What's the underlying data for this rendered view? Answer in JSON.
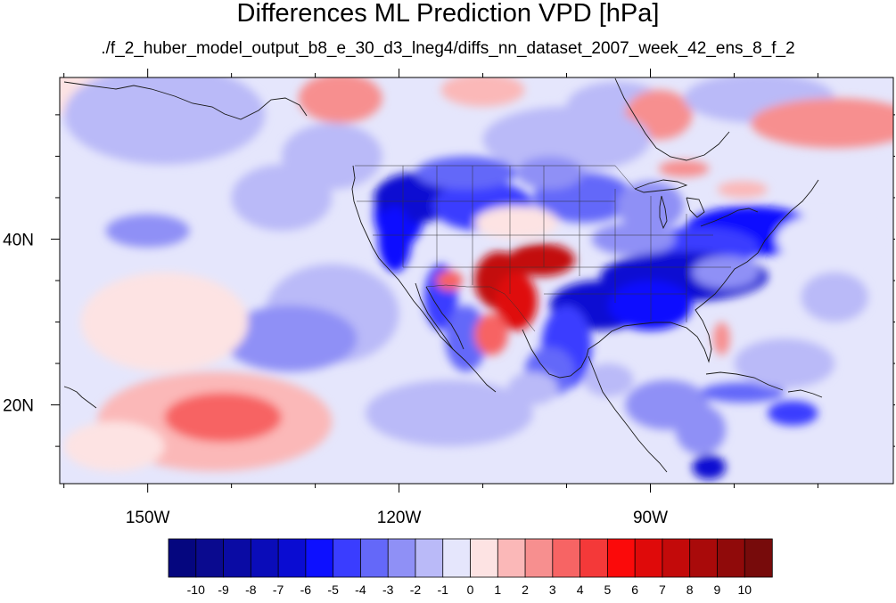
{
  "title": "Differences ML Prediction VPD [hPa]",
  "subtitle": "./f_2_huber_model_output_b8_e_30_d3_lneg4/diffs_nn_dataset_2007_week_42_ens_8_f_2",
  "map": {
    "lon_range": [
      -160.5,
      -61
    ],
    "lat_range": [
      10.5,
      59.5
    ],
    "lon_ticks": [
      {
        "value": -150,
        "label": "150W"
      },
      {
        "value": -120,
        "label": "120W"
      },
      {
        "value": -90,
        "label": "90W"
      }
    ],
    "lat_ticks": [
      {
        "value": 40,
        "label": "40N"
      },
      {
        "value": 20,
        "label": "20N"
      }
    ],
    "minor_lon_step": 10,
    "minor_lat_step": 5,
    "blobs": [
      {
        "lon": -160,
        "lat": 58,
        "rx": 9,
        "ry": 3,
        "v": 0.3
      },
      {
        "lon": -148,
        "lat": 55,
        "rx": 12,
        "ry": 6,
        "v": -1.5
      },
      {
        "lon": -127,
        "lat": 57,
        "rx": 5,
        "ry": 3,
        "v": 2.5
      },
      {
        "lon": -110,
        "lat": 58,
        "rx": 5,
        "ry": 2,
        "v": 1.2
      },
      {
        "lon": -94,
        "lat": 56,
        "rx": 6,
        "ry": 3,
        "v": -2.0
      },
      {
        "lon": -89,
        "lat": 55,
        "rx": 4,
        "ry": 3,
        "v": 2.0
      },
      {
        "lon": -77,
        "lat": 57,
        "rx": 9,
        "ry": 3,
        "v": -2.0
      },
      {
        "lon": -68,
        "lat": 54,
        "rx": 10,
        "ry": 3,
        "v": 2.5
      },
      {
        "lon": -100,
        "lat": 52,
        "rx": 10,
        "ry": 4,
        "v": -1.2
      },
      {
        "lon": -128,
        "lat": 50,
        "rx": 6,
        "ry": 4,
        "v": -1.2
      },
      {
        "lon": -134,
        "lat": 45,
        "rx": 6,
        "ry": 4,
        "v": -1.8
      },
      {
        "lon": -150,
        "lat": 41,
        "rx": 5,
        "ry": 2,
        "v": -2.6
      },
      {
        "lon": -128,
        "lat": 31,
        "rx": 8,
        "ry": 6,
        "v": -1.6
      },
      {
        "lon": -133,
        "lat": 28,
        "rx": 8,
        "ry": 4,
        "v": -2.2
      },
      {
        "lon": -148,
        "lat": 30,
        "rx": 10,
        "ry": 6,
        "v": 0.4
      },
      {
        "lon": -142,
        "lat": 18,
        "rx": 14,
        "ry": 6,
        "v": 1.6
      },
      {
        "lon": -141,
        "lat": 18.5,
        "rx": 7,
        "ry": 3,
        "v": 3.2
      },
      {
        "lon": -154,
        "lat": 15,
        "rx": 6,
        "ry": 3,
        "v": 0.8
      },
      {
        "lon": -114,
        "lat": 19,
        "rx": 10,
        "ry": 4,
        "v": -1.5
      },
      {
        "lon": -120,
        "lat": 43,
        "rx": 3,
        "ry": 4,
        "v": -5.5
      },
      {
        "lon": -118,
        "lat": 45,
        "rx": 5,
        "ry": 3,
        "v": -6.5
      },
      {
        "lon": -120.5,
        "lat": 40,
        "rx": 2,
        "ry": 4,
        "v": -5.5
      },
      {
        "lon": -110,
        "lat": 44,
        "rx": 6,
        "ry": 3,
        "v": -4.5
      },
      {
        "lon": -112,
        "lat": 48,
        "rx": 6,
        "ry": 2,
        "v": -3.5
      },
      {
        "lon": -98,
        "lat": 45,
        "rx": 6,
        "ry": 3,
        "v": -4.0
      },
      {
        "lon": -102,
        "lat": 48,
        "rx": 4,
        "ry": 2,
        "v": -3.0
      },
      {
        "lon": -90,
        "lat": 44,
        "rx": 4,
        "ry": 3,
        "v": -2.5
      },
      {
        "lon": -78,
        "lat": 41,
        "rx": 8,
        "ry": 3,
        "v": -6.0
      },
      {
        "lon": -84,
        "lat": 39,
        "rx": 7,
        "ry": 2.5,
        "v": -4.5
      },
      {
        "lon": -92,
        "lat": 40,
        "rx": 5,
        "ry": 2,
        "v": -3.0
      },
      {
        "lon": -86,
        "lat": 35.5,
        "rx": 10,
        "ry": 3,
        "v": -6.5
      },
      {
        "lon": -96,
        "lat": 32,
        "rx": 6,
        "ry": 3,
        "v": -7.0
      },
      {
        "lon": -90,
        "lat": 32,
        "rx": 5,
        "ry": 3,
        "v": -6.0
      },
      {
        "lon": -100,
        "lat": 27,
        "rx": 3,
        "ry": 5,
        "v": -4.5
      },
      {
        "lon": -102,
        "lat": 24,
        "rx": 3,
        "ry": 3,
        "v": -4.0
      },
      {
        "lon": -115,
        "lat": 33,
        "rx": 2,
        "ry": 4,
        "v": -4.5
      },
      {
        "lon": -112,
        "lat": 28,
        "rx": 2.5,
        "ry": 4,
        "v": -3.5
      },
      {
        "lon": -81,
        "lat": 36,
        "rx": 4,
        "ry": 2,
        "v": -3.0
      },
      {
        "lon": -108,
        "lat": 35,
        "rx": 3,
        "ry": 3.5,
        "v": 7.0
      },
      {
        "lon": -106,
        "lat": 32.5,
        "rx": 2.5,
        "ry": 3.5,
        "v": 6.5
      },
      {
        "lon": -109,
        "lat": 28.5,
        "rx": 2,
        "ry": 2.5,
        "v": 3.5
      },
      {
        "lon": -103,
        "lat": 37.5,
        "rx": 4,
        "ry": 2,
        "v": 7.0
      },
      {
        "lon": -114,
        "lat": 35,
        "rx": 1.6,
        "ry": 1.2,
        "v": 3.5
      },
      {
        "lon": -106,
        "lat": 42,
        "rx": 5,
        "ry": 2,
        "v": 0.6
      },
      {
        "lon": -104,
        "lat": 22,
        "rx": 3,
        "ry": 2,
        "v": -2.0
      },
      {
        "lon": -95,
        "lat": 23,
        "rx": 3,
        "ry": 2,
        "v": -1.5
      },
      {
        "lon": -88,
        "lat": 20,
        "rx": 5,
        "ry": 3,
        "v": -2.5
      },
      {
        "lon": -79,
        "lat": 21.5,
        "rx": 5,
        "ry": 1.2,
        "v": -4.0
      },
      {
        "lon": -84,
        "lat": 17,
        "rx": 3,
        "ry": 3,
        "v": -3.0
      },
      {
        "lon": -73,
        "lat": 19,
        "rx": 3,
        "ry": 1.5,
        "v": -4.5
      },
      {
        "lon": -83,
        "lat": 12.5,
        "rx": 2,
        "ry": 1.5,
        "v": -7.0
      },
      {
        "lon": -74,
        "lat": 25,
        "rx": 6,
        "ry": 3,
        "v": -2.0
      },
      {
        "lon": -68,
        "lat": 33,
        "rx": 4,
        "ry": 3,
        "v": -2.0
      },
      {
        "lon": -69,
        "lat": 40,
        "rx": 6,
        "ry": 3,
        "v": -1.0
      },
      {
        "lon": -81.5,
        "lat": 28,
        "rx": 1,
        "ry": 2,
        "v": 2.5
      },
      {
        "lon": -86,
        "lat": 48.5,
        "rx": 3,
        "ry": 1,
        "v": 2.0
      },
      {
        "lon": -79,
        "lat": 46,
        "rx": 3,
        "ry": 1,
        "v": 1.2
      }
    ]
  },
  "colorbar": {
    "labels": [
      "-10",
      "-9",
      "-8",
      "-7",
      "-6",
      "-5",
      "-4",
      "-3",
      "-2",
      "-1",
      "0",
      "1",
      "2",
      "3",
      "4",
      "5",
      "6",
      "7",
      "8",
      "9",
      "10"
    ],
    "colors": [
      "#05067f",
      "#0a0a8f",
      "#0a0ba4",
      "#0a0cb9",
      "#0a0cd2",
      "#0d10ff",
      "#3a3dff",
      "#6468f9",
      "#8f90f6",
      "#babaf8",
      "#e5e6fc",
      "#fde3e3",
      "#fbb8b8",
      "#f78f8f",
      "#f76464",
      "#f43939",
      "#fb0a0a",
      "#df0a0a",
      "#c30a0a",
      "#a90a0a",
      "#900a0a",
      "#770b0b"
    ]
  }
}
